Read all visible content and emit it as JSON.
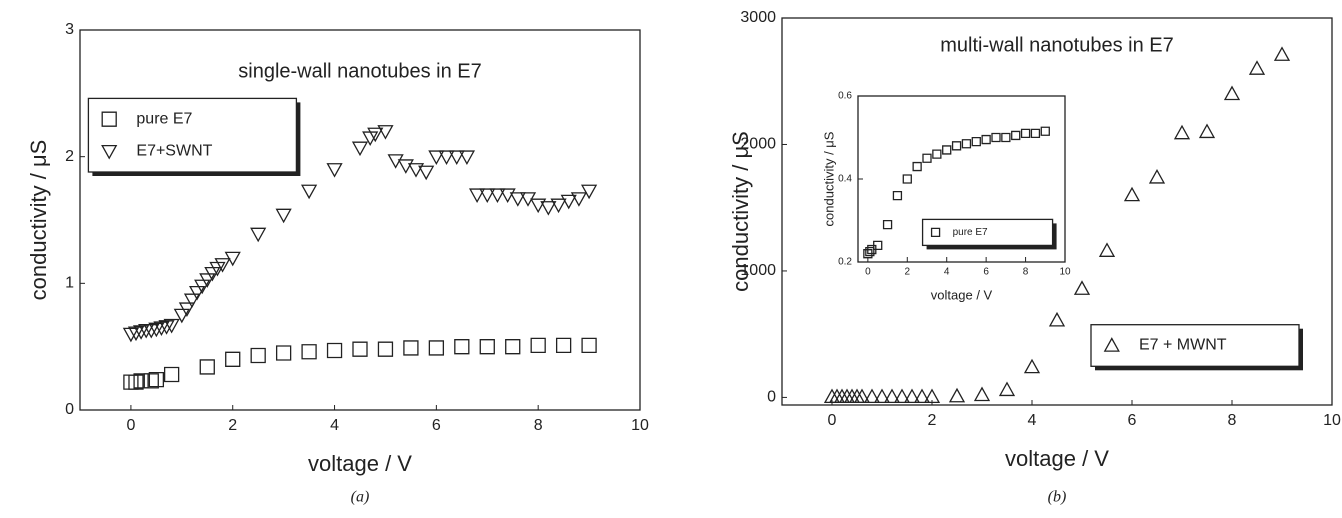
{
  "chart_data": [
    {
      "type": "scatter",
      "title": "single-wall nanotubes in E7",
      "x_label": "voltage / V",
      "y_label": "conductivity / μS",
      "caption": "(a)",
      "xlim": [
        -1,
        10
      ],
      "xticks": [
        0,
        2,
        4,
        6,
        8,
        10
      ],
      "ylim": [
        0,
        3
      ],
      "yticks": [
        0,
        1,
        2,
        3
      ],
      "legend": "upper left",
      "series": [
        {
          "name": "pure E7",
          "marker": "square",
          "color": "#222222",
          "x": [
            0,
            0.1,
            0.2,
            0.4,
            0.5,
            0.8,
            1.5,
            2,
            2.5,
            3,
            3.5,
            4,
            4.5,
            5,
            5.5,
            6,
            6.5,
            7,
            7.5,
            8,
            8.5,
            9
          ],
          "values": [
            0.22,
            0.22,
            0.23,
            0.23,
            0.24,
            0.28,
            0.34,
            0.4,
            0.43,
            0.45,
            0.46,
            0.47,
            0.48,
            0.48,
            0.49,
            0.49,
            0.5,
            0.5,
            0.5,
            0.51,
            0.51,
            0.51
          ]
        },
        {
          "name": "E7+SWNT",
          "marker": "triangle-down",
          "color": "#222222",
          "x": [
            0,
            0.1,
            0.2,
            0.3,
            0.4,
            0.5,
            0.6,
            0.7,
            0.8,
            1.0,
            1.1,
            1.2,
            1.3,
            1.4,
            1.5,
            1.6,
            1.7,
            1.8,
            2.0,
            2.5,
            3.0,
            3.5,
            4.0,
            4.5,
            4.7,
            4.8,
            5.0,
            5.2,
            5.4,
            5.6,
            5.8,
            6.0,
            6.2,
            6.4,
            6.6,
            6.8,
            7.0,
            7.2,
            7.4,
            7.6,
            7.8,
            8.0,
            8.2,
            8.4,
            8.6,
            8.8,
            9.0
          ],
          "values": [
            0.6,
            0.61,
            0.62,
            0.63,
            0.63,
            0.64,
            0.65,
            0.66,
            0.67,
            0.75,
            0.8,
            0.87,
            0.93,
            0.98,
            1.03,
            1.08,
            1.12,
            1.15,
            1.2,
            1.39,
            1.54,
            1.73,
            1.9,
            2.07,
            2.15,
            2.18,
            2.2,
            1.97,
            1.93,
            1.9,
            1.88,
            2.0,
            2.0,
            2.0,
            2.0,
            1.7,
            1.7,
            1.7,
            1.7,
            1.67,
            1.67,
            1.62,
            1.6,
            1.62,
            1.65,
            1.67,
            1.73
          ]
        }
      ]
    },
    {
      "type": "scatter",
      "title": "multi-wall nanotubes in E7",
      "x_label": "voltage / V",
      "y_label": "conductivity / μS",
      "caption": "(b)",
      "xlim": [
        -1,
        10
      ],
      "xticks": [
        0,
        2,
        4,
        6,
        8,
        10
      ],
      "ylim": [
        -60,
        3000
      ],
      "yticks": [
        0,
        1000,
        2000,
        3000
      ],
      "legend": "lower right",
      "series": [
        {
          "name": "E7 + MWNT",
          "marker": "triangle-up",
          "color": "#222222",
          "x": [
            0,
            0.1,
            0.2,
            0.3,
            0.4,
            0.5,
            0.6,
            0.8,
            1.0,
            1.2,
            1.4,
            1.6,
            1.8,
            2.0,
            2.5,
            3.0,
            3.5,
            4.0,
            4.5,
            5.0,
            5.5,
            6.0,
            6.5,
            7.0,
            7.5,
            8.0,
            8.5,
            9.0
          ],
          "values": [
            5,
            5,
            5,
            5,
            5,
            5,
            5,
            5,
            5,
            5,
            5,
            5,
            5,
            5,
            10,
            20,
            60,
            240,
            610,
            860,
            1160,
            1600,
            1740,
            2090,
            2100,
            2400,
            2600,
            2710
          ]
        }
      ]
    },
    {
      "type": "scatter",
      "x_label": "voltage / V",
      "y_label": "conductivity / μS",
      "xlim": [
        -0.5,
        10
      ],
      "xticks": [
        0,
        2,
        4,
        6,
        8,
        10
      ],
      "ylim": [
        0.2,
        0.6
      ],
      "yticks": [
        0.2,
        0.4,
        0.6
      ],
      "legend": "lower right",
      "series": [
        {
          "name": "pure E7",
          "marker": "square",
          "color": "#222222",
          "x": [
            0,
            0.1,
            0.2,
            0.5,
            1,
            1.5,
            2,
            2.5,
            3,
            3.5,
            4,
            4.5,
            5,
            5.5,
            6,
            6.5,
            7,
            7.5,
            8,
            8.5,
            9
          ],
          "values": [
            0.22,
            0.225,
            0.23,
            0.24,
            0.29,
            0.36,
            0.4,
            0.43,
            0.45,
            0.46,
            0.47,
            0.48,
            0.485,
            0.49,
            0.495,
            0.5,
            0.5,
            0.505,
            0.51,
            0.51,
            0.515
          ]
        }
      ]
    }
  ]
}
